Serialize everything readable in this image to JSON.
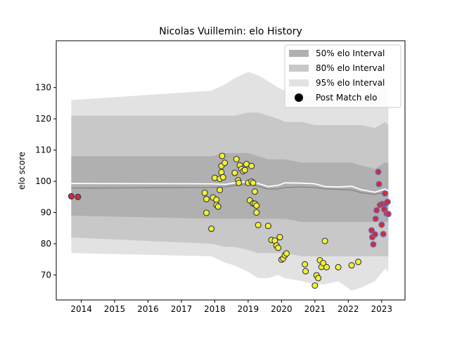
{
  "chart_data": {
    "type": "scatter",
    "title": "Nicolas Vuillemin: elo History",
    "xlabel": "",
    "ylabel": "elo score",
    "xlim": [
      2013.25,
      2023.7
    ],
    "ylim": [
      62,
      145
    ],
    "x_ticks": [
      2014,
      2015,
      2016,
      2017,
      2018,
      2019,
      2020,
      2021,
      2022,
      2023
    ],
    "y_ticks": [
      70,
      80,
      90,
      100,
      110,
      120,
      130
    ],
    "legend": {
      "position": "top-right",
      "entries": [
        {
          "label": "50% elo Interval",
          "color": "#b0b0b0",
          "kind": "patch"
        },
        {
          "label": "80% elo Interval",
          "color": "#c8c8c8",
          "kind": "patch"
        },
        {
          "label": "95% elo Interval",
          "color": "#e2e2e2",
          "kind": "patch"
        },
        {
          "label": "Post Match elo",
          "color": "#000000",
          "kind": "marker"
        }
      ]
    },
    "colors": {
      "band95": "#e2e2e2",
      "band80": "#c8c8c8",
      "band50": "#b0b0b0",
      "mean_line": "#ffffff",
      "median_line": "#888888",
      "point_yellow": "#f2f22a",
      "point_red": "#d42a36",
      "point_edge_dark": "#333355",
      "point_edge_blue": "#5577cc"
    },
    "bands": {
      "x": [
        2013.7,
        2017.9,
        2018.3,
        2018.6,
        2019.0,
        2019.3,
        2019.6,
        2019.9,
        2020.1,
        2020.6,
        2021.0,
        2021.3,
        2021.7,
        2022.1,
        2022.4,
        2022.8,
        2023.1,
        2023.2
      ],
      "band95_upper": [
        126,
        129,
        131,
        133,
        135,
        134,
        132,
        130,
        129,
        128,
        127,
        127,
        128,
        129,
        128,
        129,
        130,
        129
      ],
      "band95_lower": [
        77,
        76,
        74,
        73,
        71,
        69,
        69,
        70,
        69,
        68,
        67,
        67,
        68,
        65,
        66,
        68,
        72,
        71
      ],
      "band80_upper": [
        121,
        121,
        121,
        121,
        122,
        122,
        121,
        120,
        119,
        119,
        118,
        118,
        118,
        118,
        118,
        117,
        119,
        118
      ],
      "band80_lower": [
        82,
        80,
        79,
        79,
        78,
        77,
        77,
        77,
        77,
        76,
        76,
        76,
        76,
        76,
        76,
        76,
        76,
        76
      ],
      "band50_upper": [
        108,
        108,
        109,
        109,
        109,
        108,
        107,
        107,
        107,
        106,
        106,
        106,
        106,
        106,
        105,
        104,
        106,
        106
      ],
      "band50_lower": [
        89,
        88,
        88,
        88,
        88,
        88,
        88,
        88,
        88,
        87,
        87,
        87,
        87,
        87,
        87,
        87,
        87,
        87
      ],
      "mean_line": [
        99.3,
        99.2,
        99.0,
        99.5,
        100.0,
        99.3,
        98.3,
        98.7,
        99.5,
        99.4,
        99.2,
        98.3,
        98.2,
        98.4,
        97.3,
        96.5,
        97.5,
        97.0
      ],
      "median_line": [
        97.8,
        98.0,
        98.2,
        98.6,
        99.0,
        98.4,
        97.5,
        97.6,
        98.0,
        98.2,
        98.0,
        97.6,
        97.4,
        97.2,
        96.3,
        95.8,
        96.5,
        96.0
      ]
    },
    "series": [
      {
        "x": [
          2013.7,
          2013.9
        ],
        "y": [
          95.2,
          95.0
        ],
        "fill": "red",
        "edge": "dark"
      },
      {
        "x": [
          2017.7,
          2017.75,
          2017.75,
          2017.9,
          2017.95,
          2018.0,
          2018.05,
          2018.05,
          2018.1,
          2018.15,
          2018.15,
          2018.2,
          2018.2,
          2018.22,
          2018.25,
          2018.3,
          2018.6,
          2018.65,
          2018.7,
          2018.72,
          2018.75,
          2018.8,
          2018.85,
          2018.9,
          2018.95,
          2019.0,
          2019.05,
          2019.1,
          2019.1,
          2019.15,
          2019.15,
          2019.2,
          2019.2,
          2019.25,
          2019.25,
          2019.3,
          2019.6,
          2019.7,
          2019.8,
          2019.85,
          2019.9,
          2019.95,
          2020.0,
          2020.05,
          2020.1,
          2020.15,
          2020.7,
          2020.72,
          2021.0,
          2021.05,
          2021.1,
          2021.15,
          2021.2,
          2021.25,
          2021.3,
          2021.35,
          2021.7,
          2022.1,
          2022.3
        ],
        "y": [
          96.3,
          94.3,
          89.9,
          84.8,
          94.8,
          101.1,
          94.1,
          92.4,
          91.9,
          97.2,
          100.8,
          104.9,
          102.9,
          108.1,
          101.3,
          105.9,
          102.7,
          107.1,
          100.3,
          99.5,
          105.1,
          103.9,
          103.2,
          103.6,
          105.5,
          99.5,
          93.9,
          99.9,
          104.9,
          99.5,
          92.9,
          96.7,
          92.8,
          90.0,
          92.2,
          86.0,
          85.7,
          81.2,
          81.0,
          79.4,
          78.7,
          82.1,
          74.9,
          75.3,
          76.3,
          76.9,
          73.4,
          71.2,
          66.6,
          69.9,
          69.0,
          74.7,
          72.6,
          73.8,
          80.9,
          72.5,
          72.5,
          73.1,
          74.2
        ],
        "fill": "yellow",
        "edge": "dark"
      },
      {
        "x": [
          2022.7,
          2022.72,
          2022.75,
          2022.8,
          2022.82,
          2022.85,
          2022.9,
          2022.92,
          2022.95,
          2023.0,
          2023.02,
          2023.05,
          2023.08,
          2023.1,
          2023.12,
          2023.15,
          2023.18,
          2023.2
        ],
        "y": [
          84.3,
          82.1,
          79.8,
          83.0,
          88.0,
          90.7,
          103.0,
          99.1,
          92.4,
          86.1,
          92.7,
          83.1,
          91.0,
          96.1,
          92.9,
          89.7,
          93.4,
          89.5
        ],
        "fill": "red",
        "edge": "blue"
      }
    ]
  }
}
